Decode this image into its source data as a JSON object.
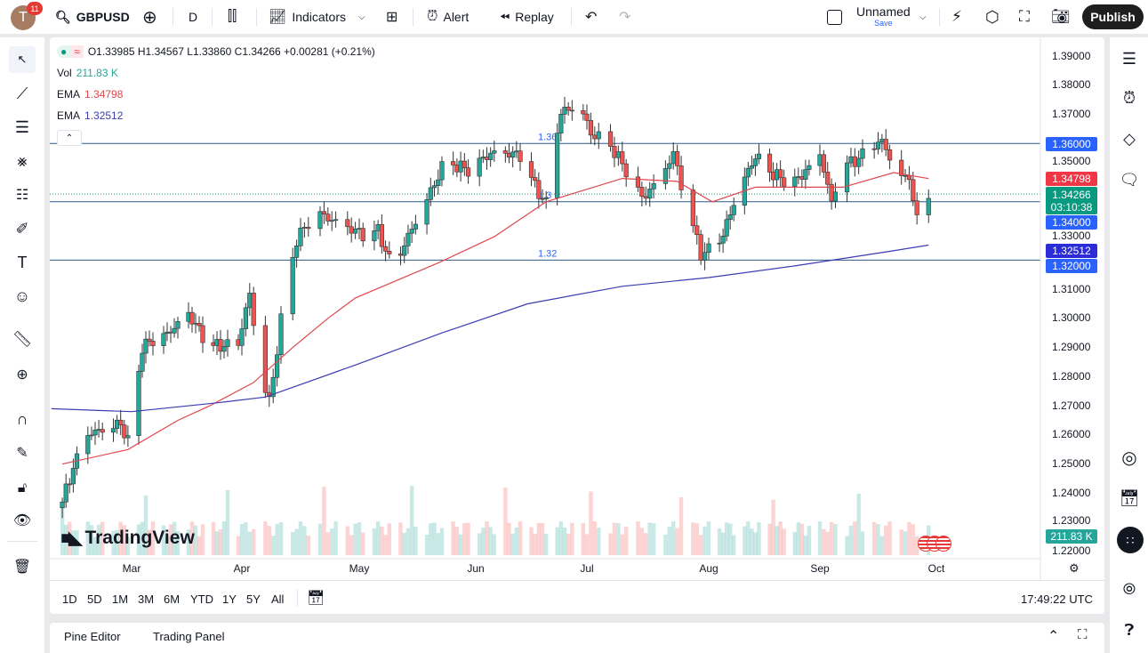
{
  "topbar": {
    "avatar_letter": "T",
    "notification_count": "11",
    "symbol": "GBPUSD",
    "interval": "D",
    "indicators_label": "Indicators",
    "alert_label": "Alert",
    "replay_label": "Replay",
    "layout_name": "Unnamed",
    "save_label": "Save",
    "publish_label": "Publish"
  },
  "legend": {
    "ohlc": "O1.33985 H1.34567 L1.33860 C1.34266 +0.00281 (+0.21%)",
    "vol_label": "Vol",
    "vol_value": "211.83 K",
    "ema1_label": "EMA",
    "ema1_value": "1.34798",
    "ema2_label": "EMA",
    "ema2_value": "1.32512"
  },
  "colors": {
    "up": "#26a69a",
    "down": "#ef5350",
    "ema_fast": "#e0474c",
    "ema_slow": "#3c3cb4",
    "hline": "#2a5b8a",
    "label_blue": "#2962ff",
    "label_red": "#f23645",
    "label_green": "#089981",
    "label_indigo": "#2b2bd8"
  },
  "price_axis": {
    "ticks": [
      "1.39000",
      "1.38000",
      "1.37000",
      "1.35000",
      "1.33000",
      "1.31000",
      "1.30000",
      "1.29000",
      "1.28000",
      "1.27000",
      "1.26000",
      "1.25000",
      "1.24000",
      "1.23000",
      "1.22000"
    ],
    "labels": {
      "h136": "1.36000",
      "ema_fast": "1.34798",
      "last": "1.34266",
      "countdown": "03:10:38",
      "h134": "1.34000",
      "ema_slow": "1.32512",
      "h132": "1.32000",
      "volume": "211.83 K"
    }
  },
  "hlines": [
    {
      "price": 1.36,
      "label": "1.36"
    },
    {
      "price": 1.34,
      "label": "1.3"
    },
    {
      "price": 1.32,
      "label": "1.32"
    }
  ],
  "time_axis": [
    "Mar",
    "Apr",
    "May",
    "Jun",
    "Jul",
    "Aug",
    "Sep",
    "Oct"
  ],
  "watermark": "TradingView",
  "range_buttons": [
    "1D",
    "5D",
    "1M",
    "3M",
    "6M",
    "YTD",
    "1Y",
    "5Y",
    "All"
  ],
  "clock": "17:49:22 UTC",
  "bottom_tabs": [
    "Pine Editor",
    "Trading Panel"
  ],
  "chart_data": {
    "type": "candlestick",
    "symbol": "GBPUSD",
    "interval": "1D",
    "ylim": [
      1.22,
      1.39
    ],
    "close_anchors": [
      [
        "2025-02-10",
        1.237
      ],
      [
        "2025-02-13",
        1.25
      ],
      [
        "2025-02-17",
        1.262
      ],
      [
        "2025-02-26",
        1.265
      ],
      [
        "2025-02-28",
        1.258
      ],
      [
        "2025-03-04",
        1.29
      ],
      [
        "2025-03-11",
        1.293
      ],
      [
        "2025-03-17",
        1.3
      ],
      [
        "2025-03-23",
        1.29
      ],
      [
        "2025-03-31",
        1.293
      ],
      [
        "2025-04-03",
        1.31
      ],
      [
        "2025-04-06",
        1.28
      ],
      [
        "2025-04-08",
        1.273
      ],
      [
        "2025-04-10",
        1.29
      ],
      [
        "2025-04-12",
        1.31
      ],
      [
        "2025-04-15",
        1.327
      ],
      [
        "2025-04-20",
        1.335
      ],
      [
        "2025-04-27",
        1.33
      ],
      [
        "2025-05-02",
        1.328
      ],
      [
        "2025-05-06",
        1.33
      ],
      [
        "2025-05-10",
        1.318
      ],
      [
        "2025-05-13",
        1.327
      ],
      [
        "2025-05-18",
        1.34
      ],
      [
        "2025-05-24",
        1.355
      ],
      [
        "2025-05-30",
        1.35
      ],
      [
        "2025-06-05",
        1.355
      ],
      [
        "2025-06-13",
        1.355
      ],
      [
        "2025-06-17",
        1.345
      ],
      [
        "2025-06-20",
        1.34
      ],
      [
        "2025-06-22",
        1.36
      ],
      [
        "2025-06-24",
        1.372
      ],
      [
        "2025-06-29",
        1.375
      ],
      [
        "2025-07-02",
        1.365
      ],
      [
        "2025-07-07",
        1.36
      ],
      [
        "2025-07-11",
        1.35
      ],
      [
        "2025-07-15",
        1.34
      ],
      [
        "2025-07-19",
        1.345
      ],
      [
        "2025-07-23",
        1.355
      ],
      [
        "2025-07-27",
        1.335
      ],
      [
        "2025-07-30",
        1.322
      ],
      [
        "2025-08-02",
        1.325
      ],
      [
        "2025-08-05",
        1.33
      ],
      [
        "2025-08-09",
        1.345
      ],
      [
        "2025-08-14",
        1.357
      ],
      [
        "2025-08-19",
        1.35
      ],
      [
        "2025-08-24",
        1.345
      ],
      [
        "2025-08-29",
        1.35
      ],
      [
        "2025-09-01",
        1.355
      ],
      [
        "2025-09-04",
        1.338
      ],
      [
        "2025-09-06",
        1.35
      ],
      [
        "2025-09-11",
        1.355
      ],
      [
        "2025-09-16",
        1.362
      ],
      [
        "2025-09-18",
        1.36
      ],
      [
        "2025-09-21",
        1.35
      ],
      [
        "2025-09-24",
        1.35
      ],
      [
        "2025-09-26",
        1.335
      ],
      [
        "2025-09-29",
        1.34266
      ]
    ],
    "ema_fast": [
      [
        "2025-02-10",
        1.25
      ],
      [
        "2025-02-28",
        1.255
      ],
      [
        "2025-03-14",
        1.265
      ],
      [
        "2025-03-23",
        1.27
      ],
      [
        "2025-04-04",
        1.278
      ],
      [
        "2025-04-14",
        1.29
      ],
      [
        "2025-04-23",
        1.3
      ],
      [
        "2025-04-30",
        1.307
      ],
      [
        "2025-05-22",
        1.319
      ],
      [
        "2025-06-06",
        1.328
      ],
      [
        "2025-06-20",
        1.34
      ],
      [
        "2025-07-10",
        1.348
      ],
      [
        "2025-07-24",
        1.347
      ],
      [
        "2025-08-02",
        1.34
      ],
      [
        "2025-08-14",
        1.345
      ],
      [
        "2025-09-07",
        1.345
      ],
      [
        "2025-09-20",
        1.35
      ],
      [
        "2025-09-29",
        1.34798
      ]
    ],
    "ema_slow": [
      [
        "2025-02-07",
        1.269
      ],
      [
        "2025-03-01",
        1.268
      ],
      [
        "2025-03-25",
        1.271
      ],
      [
        "2025-04-07",
        1.273
      ],
      [
        "2025-04-30",
        1.284
      ],
      [
        "2025-05-23",
        1.295
      ],
      [
        "2025-06-15",
        1.305
      ],
      [
        "2025-07-10",
        1.311
      ],
      [
        "2025-08-01",
        1.314
      ],
      [
        "2025-08-25",
        1.318
      ],
      [
        "2025-09-19",
        1.323
      ],
      [
        "2025-09-29",
        1.32512
      ]
    ],
    "last_price": 1.34266
  }
}
